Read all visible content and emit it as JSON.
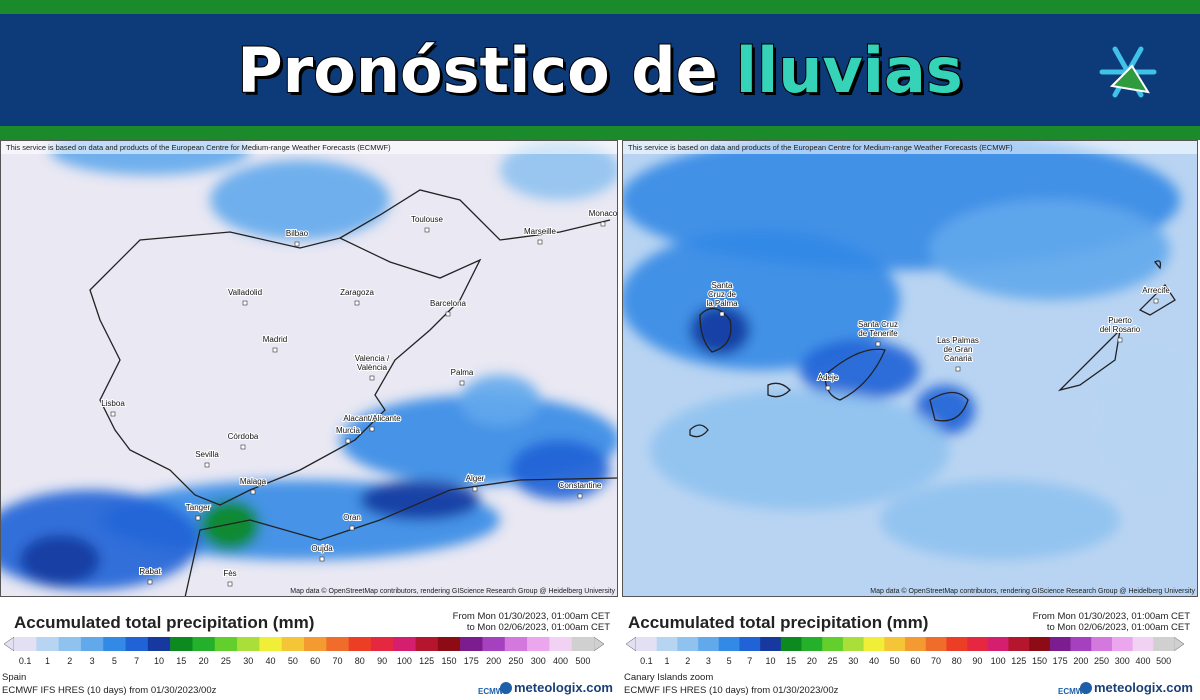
{
  "header": {
    "title_main": "Pronóstico de",
    "title_highlight": "lluvias"
  },
  "scale": {
    "labels": [
      0.1,
      1,
      2,
      3,
      5,
      7,
      10,
      15,
      20,
      25,
      30,
      40,
      50,
      60,
      70,
      80,
      90,
      100,
      125,
      150,
      175,
      200,
      250,
      300,
      400,
      500
    ],
    "colors": [
      "#e2e0f2",
      "#b7d5f3",
      "#8fc2ef",
      "#62a9ec",
      "#3389e6",
      "#1f63d6",
      "#16389f",
      "#0c8a1f",
      "#24b02b",
      "#62cf2d",
      "#aadf3a",
      "#f1ee38",
      "#f4c536",
      "#f39a30",
      "#f06c2b",
      "#ec3d25",
      "#e5273f",
      "#d61e6f",
      "#b5162d",
      "#8c0b15",
      "#7b1c8f",
      "#a540bf",
      "#d378dd",
      "#eca6ed",
      "#f2d2f2",
      "#d0d0d0"
    ]
  },
  "panels": [
    {
      "attribution": "This service is based on data and products of the European Centre for Medium-range Weather Forecasts (ECMWF)",
      "map_credit": "Map data © OpenStreetMap contributors, rendering GIScience Research Group @ Heidelberg University",
      "legend_title": "Accumulated total precipitation (mm)",
      "date_from": "From Mon 01/30/2023, 01:00am CET",
      "date_to": "to Mon 02/06/2023, 01:00am CET",
      "region": "Spain",
      "model_run": "ECMWF IFS HRES (10 days) from 01/30/2023/00z",
      "brand_ecmwf": "ECMWF",
      "brand_site": "meteologix.com",
      "cities": [
        {
          "lines": [
            "Bilbao"
          ]
        },
        {
          "lines": [
            "Toulouse"
          ]
        },
        {
          "lines": [
            "Marseille"
          ]
        },
        {
          "lines": [
            "Monaco"
          ]
        },
        {
          "lines": [
            "Valladolid"
          ]
        },
        {
          "lines": [
            "Zaragoza"
          ]
        },
        {
          "lines": [
            "Barcelona"
          ]
        },
        {
          "lines": [
            "Madrid"
          ]
        },
        {
          "lines": [
            "Valencia /",
            "València"
          ]
        },
        {
          "lines": [
            "Palma"
          ]
        },
        {
          "lines": [
            "Lisboa"
          ]
        },
        {
          "lines": [
            "Alacant/Alicante"
          ]
        },
        {
          "lines": [
            "Murcia"
          ]
        },
        {
          "lines": [
            "Córdoba"
          ]
        },
        {
          "lines": [
            "Sevilla"
          ]
        },
        {
          "lines": [
            "Malaga"
          ]
        },
        {
          "lines": [
            "Alger"
          ]
        },
        {
          "lines": [
            "Constantine"
          ]
        },
        {
          "lines": [
            "Tanger"
          ]
        },
        {
          "lines": [
            "Oran"
          ]
        },
        {
          "lines": [
            "Oujda"
          ]
        },
        {
          "lines": [
            "Rabat"
          ]
        },
        {
          "lines": [
            "Fès"
          ]
        }
      ]
    },
    {
      "attribution": "This service is based on data and products of the European Centre for Medium-range Weather Forecasts (ECMWF)",
      "map_credit": "Map data © OpenStreetMap contributors, rendering GIScience Research Group @ Heidelberg University",
      "legend_title": "Accumulated total precipitation (mm)",
      "date_from": "From Mon 01/30/2023, 01:00am CET",
      "date_to": "to Mon 02/06/2023, 01:00am CET",
      "region": "Canary Islands zoom",
      "model_run": "ECMWF IFS HRES (10 days) from 01/30/2023/00z",
      "brand_ecmwf": "ECMWF",
      "brand_site": "meteologix.com",
      "cities": [
        {
          "lines": [
            "Santa",
            "Cruz de",
            "la Palma"
          ]
        },
        {
          "lines": [
            "Santa Cruz",
            "de Tenerife"
          ]
        },
        {
          "lines": [
            "Adeje"
          ]
        },
        {
          "lines": [
            "Las Palmas",
            "de Gran",
            "Canaria"
          ]
        },
        {
          "lines": [
            "Arrecife"
          ]
        },
        {
          "lines": [
            "Puerto",
            "del Rosario"
          ]
        }
      ]
    }
  ]
}
